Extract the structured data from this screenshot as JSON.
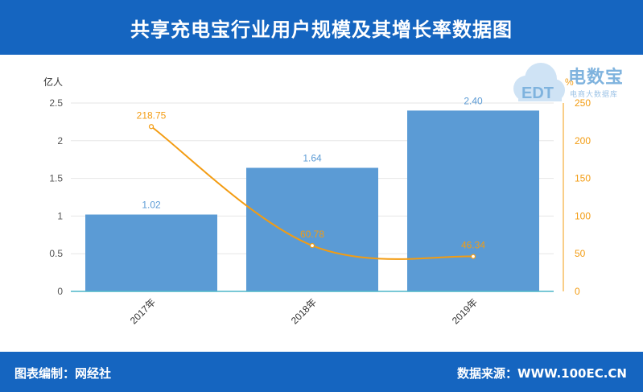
{
  "header": {
    "title": "共享充电宝行业用户规模及其增长率数据图"
  },
  "footer": {
    "credit": "图表编制：网经社",
    "source": "数据来源：WWW.100EC.CN"
  },
  "logo": {
    "brand": "电数宝",
    "sub": "电商大数据库",
    "icon_text": "EDT"
  },
  "colors": {
    "header_bg": "#1565c0",
    "bar": "#5b9bd5",
    "line": "#f39c12",
    "bar_label": "#5b9bd5",
    "axis": "#666666"
  },
  "chart_data": {
    "type": "bar",
    "categories": [
      "2017年",
      "2018年",
      "2019年"
    ],
    "series": [
      {
        "name": "",
        "type": "bar",
        "axis": "left",
        "values": [
          1.02,
          1.64,
          2.4
        ],
        "labels": [
          "1.02",
          "1.64",
          "2.40"
        ]
      },
      {
        "name": "",
        "type": "line",
        "axis": "right",
        "values": [
          218.75,
          60.78,
          46.34
        ],
        "labels": [
          "218.75",
          "60.78",
          "46.34"
        ]
      }
    ],
    "y_left": {
      "unit": "亿人",
      "ylim": [
        0,
        2.5
      ],
      "ticks": [
        "0",
        "0.5",
        "1",
        "1.5",
        "2",
        "2.5"
      ]
    },
    "y_right": {
      "unit": "%",
      "ylim": [
        0,
        250
      ],
      "ticks": [
        "0",
        "50",
        "100",
        "150",
        "200",
        "250"
      ]
    },
    "grid": true,
    "legend": "none"
  }
}
